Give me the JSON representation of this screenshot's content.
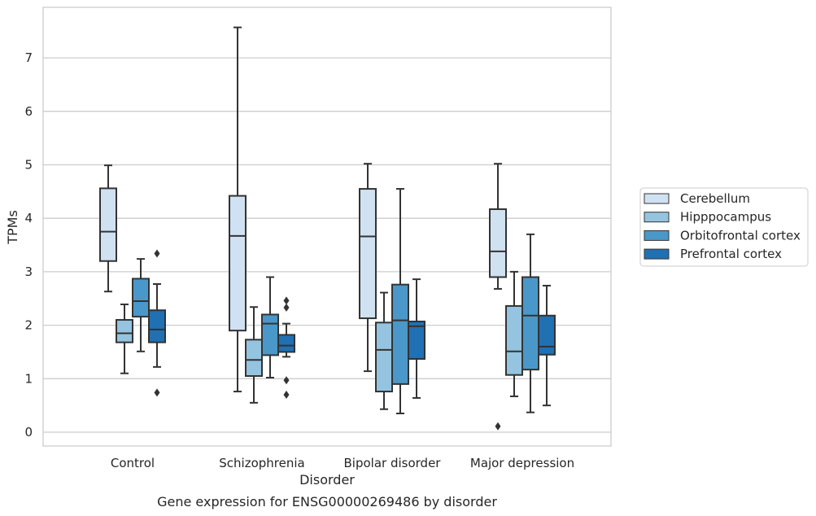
{
  "chart_data": {
    "type": "box",
    "title": "Gene expression for ENSG00000269486 by disorder",
    "xlabel": "Disorder",
    "ylabel": "TPMs",
    "ylim": [
      -0.25,
      7.95
    ],
    "yticks": [
      0,
      1,
      2,
      3,
      4,
      5,
      6,
      7
    ],
    "grid": true,
    "legend_placement": "right",
    "categories": [
      "Control",
      "Schizophrenia",
      "Bipolar disorder",
      "Major depression"
    ],
    "series": [
      {
        "name": "Cerebellum",
        "color": "#d0e1f2",
        "boxes": [
          {
            "whisker_low": 2.63,
            "q1": 3.2,
            "median": 3.75,
            "q3": 4.56,
            "whisker_high": 4.99,
            "outliers": []
          },
          {
            "whisker_low": 0.76,
            "q1": 1.9,
            "median": 3.67,
            "q3": 4.42,
            "whisker_high": 7.57,
            "outliers": []
          },
          {
            "whisker_low": 1.14,
            "q1": 2.13,
            "median": 3.66,
            "q3": 4.55,
            "whisker_high": 5.02,
            "outliers": []
          },
          {
            "whisker_low": 2.68,
            "q1": 2.9,
            "median": 3.38,
            "q3": 4.17,
            "whisker_high": 5.02,
            "outliers": [
              0.11
            ]
          }
        ]
      },
      {
        "name": "Hipppocampus",
        "color": "#94c4df",
        "boxes": [
          {
            "whisker_low": 1.1,
            "q1": 1.68,
            "median": 1.85,
            "q3": 2.1,
            "whisker_high": 2.39,
            "outliers": []
          },
          {
            "whisker_low": 0.55,
            "q1": 1.05,
            "median": 1.35,
            "q3": 1.73,
            "whisker_high": 2.34,
            "outliers": []
          },
          {
            "whisker_low": 0.43,
            "q1": 0.76,
            "median": 1.54,
            "q3": 2.05,
            "whisker_high": 2.61,
            "outliers": []
          },
          {
            "whisker_low": 0.67,
            "q1": 1.07,
            "median": 1.51,
            "q3": 2.36,
            "whisker_high": 3.0,
            "outliers": []
          }
        ]
      },
      {
        "name": "Orbitofrontal cortex",
        "color": "#4a98c9",
        "boxes": [
          {
            "whisker_low": 1.51,
            "q1": 2.16,
            "median": 2.45,
            "q3": 2.87,
            "whisker_high": 3.24,
            "outliers": []
          },
          {
            "whisker_low": 1.02,
            "q1": 1.44,
            "median": 2.03,
            "q3": 2.2,
            "whisker_high": 2.9,
            "outliers": []
          },
          {
            "whisker_low": 0.35,
            "q1": 0.9,
            "median": 2.09,
            "q3": 2.76,
            "whisker_high": 4.55,
            "outliers": []
          },
          {
            "whisker_low": 0.37,
            "q1": 1.17,
            "median": 2.18,
            "q3": 2.9,
            "whisker_high": 3.7,
            "outliers": []
          }
        ]
      },
      {
        "name": "Prefrontal cortex",
        "color": "#2070b4",
        "boxes": [
          {
            "whisker_low": 1.22,
            "q1": 1.68,
            "median": 1.92,
            "q3": 2.28,
            "whisker_high": 2.77,
            "outliers": [
              3.34,
              0.74
            ]
          },
          {
            "whisker_low": 1.41,
            "q1": 1.5,
            "median": 1.62,
            "q3": 1.82,
            "whisker_high": 2.03,
            "outliers": [
              2.46,
              2.33,
              0.97,
              0.7
            ]
          },
          {
            "whisker_low": 0.64,
            "q1": 1.37,
            "median": 1.98,
            "q3": 2.07,
            "whisker_high": 2.86,
            "outliers": []
          },
          {
            "whisker_low": 0.5,
            "q1": 1.45,
            "median": 1.6,
            "q3": 2.18,
            "whisker_high": 2.74,
            "outliers": []
          }
        ]
      }
    ]
  }
}
